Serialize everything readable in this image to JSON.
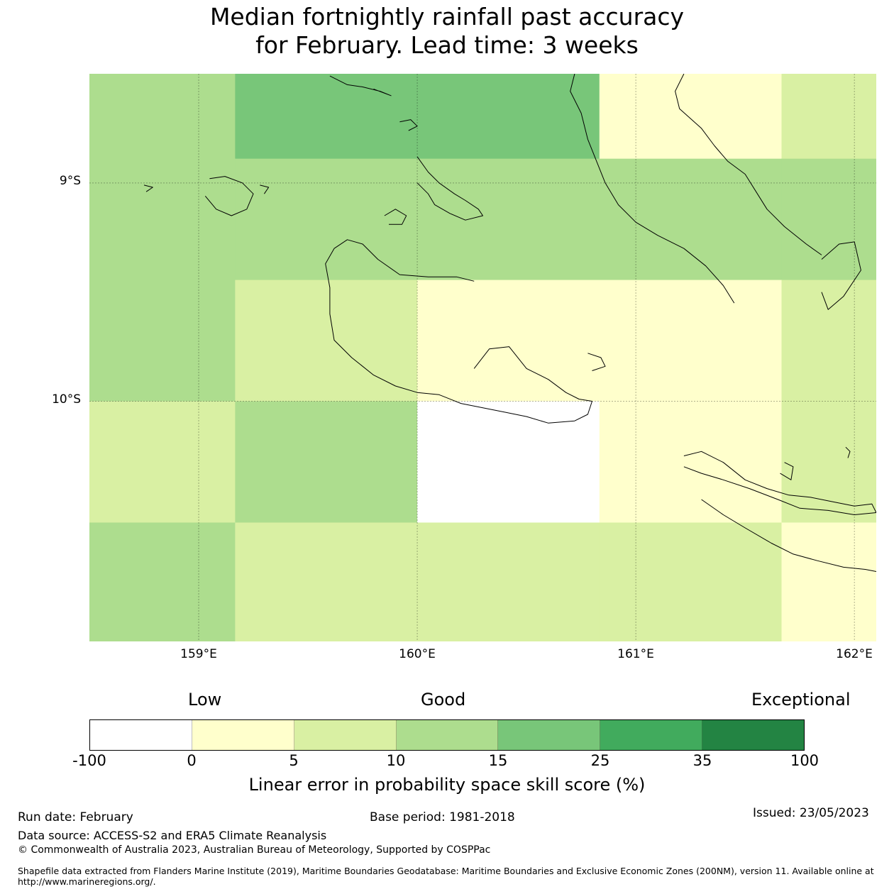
{
  "title": {
    "line1": "Median fortnightly rainfall past accuracy",
    "line2": "for February. Lead time: 3 weeks"
  },
  "map": {
    "lon_range": [
      158.5,
      162.1
    ],
    "lat_range": [
      -8.5,
      -11.1
    ],
    "lat_labels": [
      "9°S",
      "10°S"
    ],
    "lat_values": [
      -9,
      -10
    ],
    "lon_labels": [
      "159°E",
      "160°E",
      "161°E",
      "162°E"
    ],
    "lon_values": [
      159,
      160,
      161,
      162
    ],
    "grid": {
      "lon_edges": [
        158.5,
        159.1667,
        160.0,
        160.8333,
        161.6667,
        162.1
      ],
      "lat_edges": [
        -8.5,
        -8.8889,
        -9.4444,
        -10.0,
        -10.5556,
        -11.1
      ],
      "cells": [
        [
          3,
          4,
          4,
          1,
          2
        ],
        [
          3,
          3,
          3,
          3,
          3
        ],
        [
          3,
          2,
          1,
          1,
          2
        ],
        [
          2,
          3,
          0,
          1,
          2
        ],
        [
          3,
          2,
          2,
          2,
          1
        ]
      ]
    },
    "coastlines": [
      [
        [
          161.85,
          -9.35
        ],
        [
          161.93,
          -9.28
        ],
        [
          162.0,
          -9.27
        ],
        [
          162.03,
          -9.4
        ],
        [
          161.95,
          -9.52
        ],
        [
          161.88,
          -9.58
        ],
        [
          161.85,
          -9.5
        ]
      ],
      [
        [
          160.26,
          -9.85
        ],
        [
          160.33,
          -9.76
        ],
        [
          160.42,
          -9.75
        ],
        [
          160.5,
          -9.85
        ],
        [
          160.6,
          -9.9
        ],
        [
          160.68,
          -9.96
        ],
        [
          160.74,
          -9.99
        ],
        [
          160.8,
          -10.0
        ],
        [
          160.78,
          -10.06
        ],
        [
          160.72,
          -10.09
        ],
        [
          160.6,
          -10.1
        ],
        [
          160.5,
          -10.07
        ],
        [
          160.4,
          -10.05
        ],
        [
          160.3,
          -10.03
        ],
        [
          160.2,
          -10.01
        ],
        [
          160.1,
          -9.97
        ],
        [
          160.0,
          -9.96
        ],
        [
          159.9,
          -9.93
        ],
        [
          159.8,
          -9.88
        ],
        [
          159.7,
          -9.8
        ],
        [
          159.62,
          -9.72
        ],
        [
          159.6,
          -9.6
        ],
        [
          159.6,
          -9.48
        ],
        [
          159.58,
          -9.37
        ],
        [
          159.62,
          -9.3
        ],
        [
          159.68,
          -9.26
        ],
        [
          159.75,
          -9.28
        ],
        [
          159.82,
          -9.35
        ],
        [
          159.92,
          -9.42
        ],
        [
          160.05,
          -9.43
        ],
        [
          160.18,
          -9.43
        ],
        [
          160.26,
          -9.45
        ]
      ],
      [
        [
          161.22,
          -10.25
        ],
        [
          161.3,
          -10.23
        ],
        [
          161.4,
          -10.28
        ],
        [
          161.5,
          -10.36
        ],
        [
          161.6,
          -10.4
        ],
        [
          161.7,
          -10.43
        ],
        [
          161.8,
          -10.44
        ],
        [
          161.9,
          -10.46
        ],
        [
          162.0,
          -10.48
        ],
        [
          162.08,
          -10.47
        ],
        [
          162.1,
          -10.51
        ],
        [
          162.0,
          -10.52
        ],
        [
          161.88,
          -10.5
        ],
        [
          161.75,
          -10.49
        ],
        [
          161.65,
          -10.45
        ],
        [
          161.52,
          -10.4
        ],
        [
          161.4,
          -10.36
        ],
        [
          161.3,
          -10.33
        ],
        [
          161.22,
          -10.3
        ]
      ],
      [
        [
          161.3,
          -10.45
        ],
        [
          161.4,
          -10.52
        ],
        [
          161.5,
          -10.58
        ],
        [
          161.62,
          -10.65
        ],
        [
          161.72,
          -10.7
        ],
        [
          161.83,
          -10.73
        ],
        [
          161.95,
          -10.76
        ],
        [
          162.05,
          -10.77
        ],
        [
          162.1,
          -10.78
        ]
      ],
      [
        [
          159.6,
          -8.51
        ],
        [
          159.68,
          -8.55
        ],
        [
          159.75,
          -8.56
        ],
        [
          159.83,
          -8.58
        ],
        [
          159.88,
          -8.6
        ],
        [
          159.8,
          -8.57
        ]
      ],
      [
        [
          161.22,
          -8.5
        ],
        [
          161.18,
          -8.58
        ],
        [
          161.2,
          -8.66
        ],
        [
          161.3,
          -8.75
        ],
        [
          161.36,
          -8.83
        ],
        [
          161.42,
          -8.9
        ],
        [
          161.5,
          -8.96
        ],
        [
          161.55,
          -9.04
        ],
        [
          161.6,
          -9.12
        ],
        [
          161.68,
          -9.2
        ],
        [
          161.78,
          -9.28
        ],
        [
          161.85,
          -9.33
        ]
      ],
      [
        [
          160.72,
          -8.5
        ],
        [
          160.7,
          -8.58
        ],
        [
          160.75,
          -8.68
        ],
        [
          160.78,
          -8.8
        ],
        [
          160.82,
          -8.9
        ],
        [
          160.86,
          -9.0
        ],
        [
          160.92,
          -9.1
        ],
        [
          161.0,
          -9.18
        ],
        [
          161.1,
          -9.24
        ],
        [
          161.22,
          -9.3
        ],
        [
          161.32,
          -9.38
        ],
        [
          161.4,
          -9.47
        ],
        [
          161.45,
          -9.55
        ]
      ],
      [
        [
          160.0,
          -8.88
        ],
        [
          160.05,
          -8.95
        ],
        [
          160.1,
          -9.0
        ],
        [
          160.17,
          -9.05
        ],
        [
          160.22,
          -9.08
        ],
        [
          160.28,
          -9.12
        ],
        [
          160.3,
          -9.15
        ],
        [
          160.22,
          -9.17
        ],
        [
          160.15,
          -9.14
        ],
        [
          160.08,
          -9.1
        ],
        [
          160.05,
          -9.05
        ],
        [
          160.0,
          -9.0
        ]
      ],
      [
        [
          159.85,
          -9.15
        ],
        [
          159.9,
          -9.12
        ],
        [
          159.95,
          -9.15
        ],
        [
          159.93,
          -9.19
        ],
        [
          159.87,
          -9.19
        ]
      ],
      [
        [
          159.05,
          -8.98
        ],
        [
          159.12,
          -8.97
        ],
        [
          159.2,
          -9.0
        ],
        [
          159.25,
          -9.05
        ],
        [
          159.22,
          -9.12
        ],
        [
          159.15,
          -9.15
        ],
        [
          159.08,
          -9.12
        ],
        [
          159.03,
          -9.06
        ]
      ],
      [
        [
          159.28,
          -9.01
        ],
        [
          159.32,
          -9.02
        ],
        [
          159.3,
          -9.05
        ]
      ],
      [
        [
          158.75,
          -9.01
        ],
        [
          158.79,
          -9.02
        ],
        [
          158.76,
          -9.04
        ]
      ],
      [
        [
          159.92,
          -8.72
        ],
        [
          159.97,
          -8.71
        ],
        [
          160.0,
          -8.74
        ],
        [
          159.96,
          -8.76
        ]
      ],
      [
        [
          160.78,
          -9.78
        ],
        [
          160.84,
          -9.8
        ],
        [
          160.86,
          -9.84
        ],
        [
          160.8,
          -9.86
        ]
      ],
      [
        [
          161.68,
          -10.28
        ],
        [
          161.72,
          -10.3
        ],
        [
          161.71,
          -10.36
        ],
        [
          161.66,
          -10.33
        ]
      ],
      [
        [
          161.96,
          -10.21
        ],
        [
          161.98,
          -10.23
        ],
        [
          161.97,
          -10.26
        ]
      ]
    ]
  },
  "legend": {
    "headers": [
      "Low",
      "Good",
      "Exceptional"
    ],
    "colors": [
      "#ffffff",
      "#ffffcc",
      "#d9f0a3",
      "#addd8e",
      "#78c679",
      "#41ab5d",
      "#238443"
    ],
    "ticks": [
      "-100",
      "0",
      "5",
      "10",
      "15",
      "25",
      "35",
      "100"
    ],
    "label": "Linear error in probability space skill score (%)"
  },
  "footer": {
    "run_date": "Run date: February",
    "base_period": "Base period: 1981-2018",
    "issued": "Issued: 23/05/2023",
    "data_source": "Data source: ACCESS-S2 and ERA5 Climate Reanalysis",
    "copyright": "© Commonwealth of Australia 2023, Australian Bureau of Meteorology, Supported by COSPPac",
    "shapefile_line1": "Shapefile data extracted from Flanders Marine Institute (2019), Maritime Boundaries Geodatabase: Maritime Boundaries and Exclusive Economic Zones (200NM), version 11. Available online at",
    "shapefile_line2": "http://www.marineregions.org/."
  }
}
